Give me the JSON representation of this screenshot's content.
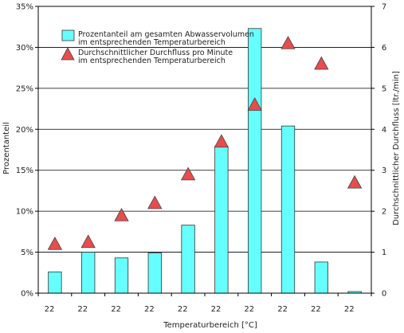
{
  "chart_data": {
    "type": "bar",
    "xlabel": "Temperaturbereich [°C]",
    "ylabel": "Prozentanteil",
    "y2label": "Durchschnittlicher Durchfluss [ltr./min]",
    "ylim": [
      0,
      35
    ],
    "y2lim": [
      0,
      7
    ],
    "grid": "horizontal",
    "legend_position": "top-left",
    "categories": [
      "22",
      "22",
      "22",
      "22",
      "22",
      "22",
      "22",
      "22",
      "22",
      "22"
    ],
    "y_ticks": [
      "0%",
      "5%",
      "10%",
      "15%",
      "20%",
      "25%",
      "30%",
      "35%"
    ],
    "y2_ticks": [
      "0",
      "1",
      "2",
      "3",
      "4",
      "5",
      "6",
      "7"
    ],
    "series": [
      {
        "name_lines": [
          "Prozentanteil am gesamten Abwasservolumen",
          "im entsprechenden Temperaturbereich"
        ],
        "type": "bar",
        "axis": "left",
        "color": "#66ffff",
        "values": [
          2.6,
          5.0,
          4.3,
          4.9,
          8.3,
          17.9,
          32.3,
          20.4,
          3.8,
          0.2
        ]
      },
      {
        "name_lines": [
          "Durchschnittlicher Durchfluss pro Minute",
          "im entsprechenden Temperaturbereich"
        ],
        "type": "scatter",
        "marker": "triangle",
        "axis": "right",
        "color": "#e84c4c",
        "values": [
          1.2,
          1.25,
          1.9,
          2.2,
          2.9,
          3.7,
          4.6,
          6.1,
          5.6,
          2.7
        ]
      }
    ]
  }
}
